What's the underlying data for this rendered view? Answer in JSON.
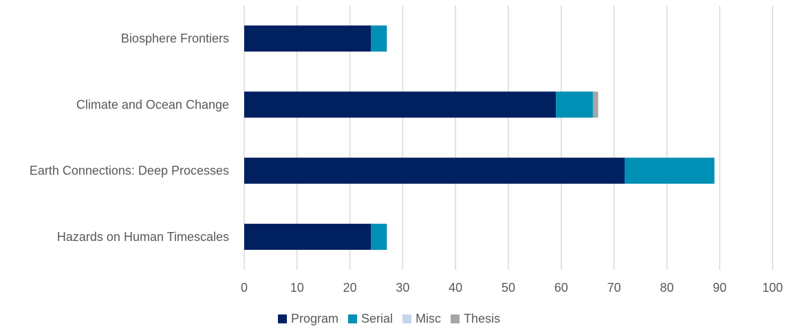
{
  "chart_data": {
    "type": "bar",
    "orientation": "horizontal",
    "stacked": true,
    "title": "",
    "xlabel": "",
    "ylabel": "",
    "categories": [
      "Biosphere Frontiers",
      "Climate and Ocean Change",
      "Earth Connections: Deep Processes",
      "Hazards on Human Timescales"
    ],
    "series": [
      {
        "name": "Program",
        "color": "#002060",
        "values": [
          24,
          59,
          72,
          24
        ]
      },
      {
        "name": "Serial",
        "color": "#008FB5",
        "values": [
          3,
          7,
          17,
          3
        ]
      },
      {
        "name": "Misc",
        "color": "#C5D5EA",
        "values": [
          0,
          0,
          0,
          0
        ]
      },
      {
        "name": "Thesis",
        "color": "#A6A6A6",
        "values": [
          0,
          1,
          0,
          0
        ]
      }
    ],
    "xlim": [
      0,
      100
    ],
    "x_ticks": [
      0,
      10,
      20,
      30,
      40,
      50,
      60,
      70,
      80,
      90,
      100
    ],
    "x_tick_labels": [
      "0",
      "10",
      "20",
      "30",
      "40",
      "50",
      "60",
      "70",
      "80",
      "90",
      "100"
    ],
    "grid": "vertical",
    "legend": "bottom"
  }
}
